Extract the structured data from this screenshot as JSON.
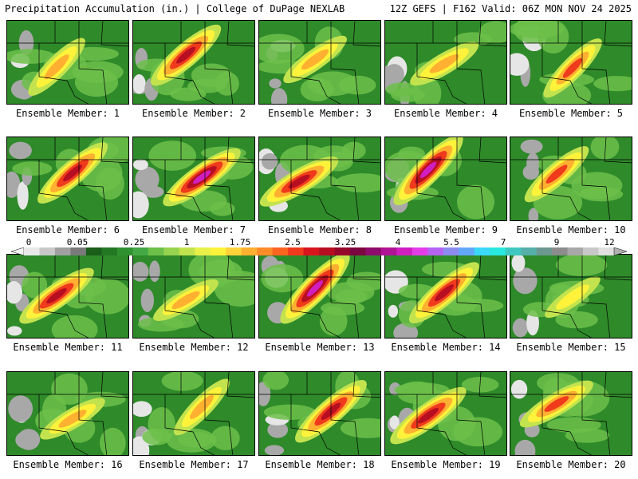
{
  "header": {
    "left": "Precipitation Accumulation (in.) | College of DuPage NEXLAB",
    "right": "12Z GEFS | F162 Valid: 06Z MON NOV 24 2025"
  },
  "colorbar": {
    "labels": [
      "0",
      "0.05",
      "0.25",
      "1",
      "1.75",
      "2.5",
      "3.25",
      "4",
      "5.5",
      "7",
      "9",
      "12"
    ],
    "colors": [
      "#e8e8e8",
      "#c8c8c8",
      "#a0a0a0",
      "#7a7a7a",
      "#1a5e1a",
      "#237823",
      "#2f912f",
      "#44a844",
      "#6cc04a",
      "#96d34e",
      "#c3e34e",
      "#e8f04a",
      "#fff23a",
      "#ffd23a",
      "#ffb030",
      "#ff8c28",
      "#ff6420",
      "#f03a1c",
      "#d8141c",
      "#b80e22",
      "#96082a",
      "#7c0640",
      "#8e0a6c",
      "#b01494",
      "#d01ec0",
      "#e43ce8",
      "#b464f0",
      "#8c8cf0",
      "#62a8f8",
      "#3cd8f8",
      "#28e8e0",
      "#40c8c0",
      "#54b0a8",
      "#6c9890",
      "#8c8c8c",
      "#a8a8a8",
      "#c8c8c8",
      "#e0e0e0"
    ]
  },
  "panels": [
    {
      "label": "Ensemble Member: 1",
      "intensity": 0.55
    },
    {
      "label": "Ensemble Member: 2",
      "intensity": 0.85
    },
    {
      "label": "Ensemble Member: 3",
      "intensity": 0.5
    },
    {
      "label": "Ensemble Member: 4",
      "intensity": 0.55
    },
    {
      "label": "Ensemble Member: 5",
      "intensity": 0.6
    },
    {
      "label": "Ensemble Member: 6",
      "intensity": 0.85
    },
    {
      "label": "Ensemble Member: 7",
      "intensity": 0.95
    },
    {
      "label": "Ensemble Member: 8",
      "intensity": 0.85
    },
    {
      "label": "Ensemble Member: 9",
      "intensity": 1.0
    },
    {
      "label": "Ensemble Member: 10",
      "intensity": 0.65
    },
    {
      "label": "Ensemble Member: 11",
      "intensity": 0.85
    },
    {
      "label": "Ensemble Member: 12",
      "intensity": 0.45
    },
    {
      "label": "Ensemble Member: 13",
      "intensity": 1.0
    },
    {
      "label": "Ensemble Member: 14",
      "intensity": 0.85
    },
    {
      "label": "Ensemble Member: 15",
      "intensity": 0.25
    },
    {
      "label": "Ensemble Member: 16",
      "intensity": 0.45
    },
    {
      "label": "Ensemble Member: 17",
      "intensity": 0.5
    },
    {
      "label": "Ensemble Member: 18",
      "intensity": 0.9
    },
    {
      "label": "Ensemble Member: 19",
      "intensity": 0.9
    },
    {
      "label": "Ensemble Member: 20",
      "intensity": 0.7
    }
  ]
}
